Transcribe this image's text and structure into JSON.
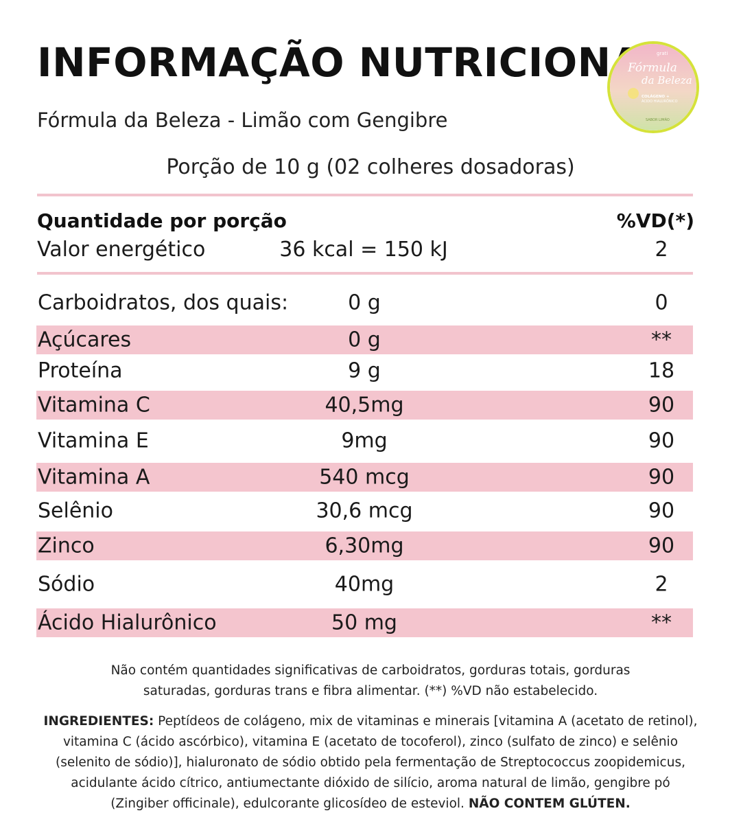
{
  "header": {
    "title": "INFORMAÇÃO NUTRICIONAL",
    "subtitle": "Fórmula da Beleza - Limão com Gengibre",
    "portion": "Porção de 10 g (02 colheres dosadoras)"
  },
  "logo": {
    "brand": "grati",
    "name_line1": "Fórmula",
    "name_line2": "da Beleza",
    "claim1": "COLÁGENO +",
    "claim2": "ÁCIDO HIALURÔNICO",
    "flavor": "SABOR LIMÃO",
    "colors": {
      "ring": "#d5e23a",
      "top": "#f2b6c8",
      "bottom": "#cfe3a8"
    }
  },
  "table_header": {
    "left": "Quantidade por porção",
    "right": "%VD(*)"
  },
  "energy": {
    "label": "Valor energético",
    "value": "36 kcal = 150 kJ",
    "vd": "2"
  },
  "rows": [
    {
      "label": "Carboidratos, dos quais:",
      "value": "0 g",
      "vd": "0",
      "shaded": false
    },
    {
      "label": "Açúcares",
      "value": "0 g",
      "vd": "**",
      "shaded": true
    },
    {
      "label": "Proteína",
      "value": "9 g",
      "vd": "18",
      "shaded": false
    },
    {
      "label": "Vitamina C",
      "value": "40,5mg",
      "vd": "90",
      "shaded": true
    },
    {
      "label": "Vitamina E",
      "value": "9mg",
      "vd": "90",
      "shaded": false
    },
    {
      "label": "Vitamina A",
      "value": "540 mcg",
      "vd": "90",
      "shaded": true
    },
    {
      "label": "Selênio",
      "value": "30,6 mcg",
      "vd": "90",
      "shaded": false
    },
    {
      "label": "Zinco",
      "value": "6,30mg",
      "vd": "90",
      "shaded": true
    },
    {
      "label": "Sódio",
      "value": "40mg",
      "vd": "2",
      "shaded": false
    },
    {
      "label": "Ácido Hialurônico",
      "value": "50 mg",
      "vd": "**",
      "shaded": true
    }
  ],
  "footnote": {
    "line1": "Não contém quantidades significativas de carboidratos, gorduras totais, gorduras",
    "line2": "saturadas, gorduras trans e fibra alimentar. (**) %VD não estabelecido."
  },
  "ingredients": {
    "label": "INGREDIENTES:",
    "text": "Peptídeos de colágeno, mix de vitaminas e minerais [vitamina A (acetato de retinol), vitamina C (ácido ascórbico), vitamina E (acetato de tocoferol), zinco (sulfato de zinco) e selênio (selenito de sódio)], hialuronato de sódio obtido pela fermentação de Streptococcus zoopidemicus, acidulante ácido cítrico, antiumectante dióxido de silício, aroma natural de limão, gengibre pó (Zingiber officinale), edulcorante glicosídeo de esteviol.",
    "gluten": "NÃO CONTEM GLÚTEN."
  },
  "colors": {
    "rule": "#f2c4cd",
    "row_shade": "#f4c5ce",
    "text": "#1a1a1a"
  }
}
